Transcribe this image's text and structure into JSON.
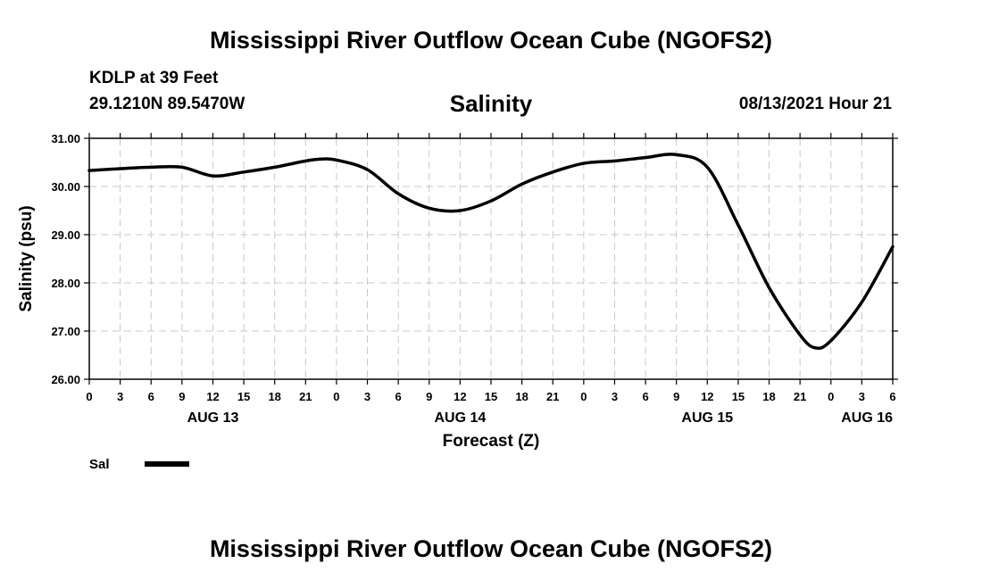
{
  "header": {
    "title": "Mississippi River Outflow Ocean Cube (NGOFS2)",
    "station": "KDLP at 39 Feet",
    "coords": "29.1210N  89.5470W",
    "datetime": "08/13/2021 Hour 21"
  },
  "footer": {
    "title": "Mississippi River Outflow Ocean Cube (NGOFS2)"
  },
  "chart_data": {
    "type": "line",
    "title": "Salinity",
    "xlabel": "Forecast (Z)",
    "ylabel": "Salinity (psu)",
    "xlim": [
      0,
      78
    ],
    "ylim": [
      26,
      31
    ],
    "grid": true,
    "ytick_values": [
      26,
      27,
      28,
      29,
      30,
      31
    ],
    "ytick_labels": [
      "26.00",
      "27.00",
      "28.00",
      "29.00",
      "30.00",
      "31.00"
    ],
    "xtick_values": [
      0,
      3,
      6,
      9,
      12,
      15,
      18,
      21,
      24,
      27,
      30,
      33,
      36,
      39,
      42,
      45,
      48,
      51,
      54,
      57,
      60,
      63,
      66,
      69,
      72,
      75,
      78
    ],
    "xtick_labels": [
      "0",
      "3",
      "6",
      "9",
      "12",
      "15",
      "18",
      "21",
      "0",
      "3",
      "6",
      "9",
      "12",
      "15",
      "18",
      "21",
      "0",
      "3",
      "6",
      "9",
      "12",
      "15",
      "18",
      "21",
      "0",
      "3",
      "6"
    ],
    "day_labels": [
      {
        "x": 12,
        "label": "AUG 13"
      },
      {
        "x": 36,
        "label": "AUG 14"
      },
      {
        "x": 60,
        "label": "AUG 15"
      },
      {
        "x": 75.5,
        "label": "AUG 16"
      }
    ],
    "series": [
      {
        "name": "Sal",
        "color": "#000000",
        "x": [
          0,
          3,
          6,
          9,
          12,
          15,
          18,
          21,
          22.5,
          24,
          27,
          30,
          33,
          36,
          39,
          42,
          45,
          48,
          51,
          54,
          57,
          60,
          63,
          66,
          69,
          70.5,
          72,
          75,
          78
        ],
        "y": [
          30.33,
          30.37,
          30.4,
          30.4,
          30.22,
          30.3,
          30.4,
          30.53,
          30.57,
          30.55,
          30.35,
          29.85,
          29.55,
          29.5,
          29.7,
          30.05,
          30.3,
          30.48,
          30.53,
          30.6,
          30.66,
          30.4,
          29.2,
          27.9,
          26.92,
          26.65,
          26.8,
          27.6,
          28.75
        ]
      }
    ]
  }
}
